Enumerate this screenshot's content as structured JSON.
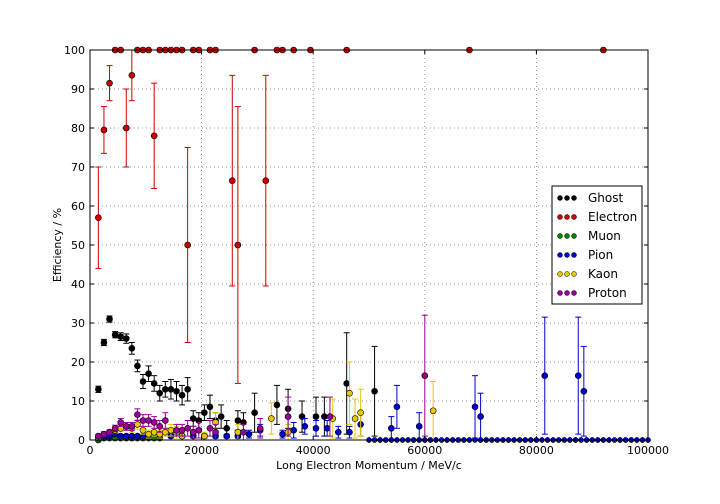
{
  "chart_data": {
    "type": "scatter",
    "xlabel": "Long Electron Momentum / MeV/c",
    "ylabel": "Efficiency / %",
    "xlim": [
      0,
      100000
    ],
    "ylim": [
      0,
      100
    ],
    "x_ticks": [
      0,
      20000,
      40000,
      60000,
      80000,
      100000
    ],
    "y_ticks": [
      0,
      10,
      20,
      30,
      40,
      50,
      60,
      70,
      80,
      90,
      100
    ],
    "grid": true,
    "legend_position": "right",
    "series": [
      {
        "name": "Ghost",
        "color": "#000000",
        "points": [
          [
            1500,
            13,
            0.8
          ],
          [
            2500,
            25,
            0.8
          ],
          [
            3500,
            31,
            0.8
          ],
          [
            4500,
            27,
            0.8
          ],
          [
            5500,
            26.5,
            1
          ],
          [
            6500,
            26,
            1.2
          ],
          [
            7500,
            23.5,
            1.5
          ],
          [
            8500,
            19,
            1.5
          ],
          [
            9500,
            15,
            1.8
          ],
          [
            10500,
            17,
            2
          ],
          [
            11500,
            14.5,
            2
          ],
          [
            12500,
            12,
            2
          ],
          [
            13500,
            13,
            2
          ],
          [
            14500,
            13,
            2.5
          ],
          [
            15500,
            12.5,
            2.5
          ],
          [
            16500,
            11.5,
            2.5
          ],
          [
            17500,
            13,
            3
          ],
          [
            18500,
            5.5,
            2
          ],
          [
            19500,
            5,
            2
          ],
          [
            20500,
            7,
            2
          ],
          [
            21500,
            8.5,
            3
          ],
          [
            22500,
            5,
            2
          ],
          [
            23500,
            6,
            3
          ],
          [
            24500,
            3,
            2
          ],
          [
            26500,
            5,
            2.5
          ],
          [
            27500,
            4.5,
            2.5
          ],
          [
            29500,
            7,
            5
          ],
          [
            33500,
            9,
            5
          ],
          [
            35500,
            8,
            5
          ],
          [
            38000,
            6,
            4
          ],
          [
            40500,
            6,
            5
          ],
          [
            42000,
            6,
            5
          ],
          [
            46000,
            14.5,
            13
          ],
          [
            51000,
            12.5,
            11.5
          ]
        ]
      },
      {
        "name": "Electron",
        "color": "#cc0000",
        "points": [
          [
            1500,
            57,
            13
          ],
          [
            2500,
            79.5,
            6
          ],
          [
            3500,
            91.5,
            4.5
          ],
          [
            4500,
            100,
            0
          ],
          [
            5500,
            100,
            0
          ],
          [
            6500,
            80,
            10
          ],
          [
            7500,
            93.5,
            6.5
          ],
          [
            8500,
            100,
            0
          ],
          [
            9500,
            100,
            0
          ],
          [
            10500,
            100,
            0
          ],
          [
            11500,
            78,
            13.5
          ],
          [
            12500,
            100,
            0
          ],
          [
            13500,
            100,
            0
          ],
          [
            14500,
            100,
            0
          ],
          [
            15500,
            100,
            0
          ],
          [
            16500,
            100,
            0
          ],
          [
            17500,
            50,
            25
          ],
          [
            18500,
            100,
            0
          ],
          [
            19500,
            100,
            0
          ],
          [
            21500,
            100,
            0
          ],
          [
            22500,
            100,
            0
          ],
          [
            25500,
            66.5,
            27
          ],
          [
            26500,
            50,
            35.5
          ],
          [
            29500,
            100,
            0
          ],
          [
            31500,
            66.5,
            27
          ],
          [
            33500,
            100,
            0
          ],
          [
            34500,
            100,
            0
          ],
          [
            36500,
            100,
            0
          ],
          [
            39500,
            100,
            0
          ],
          [
            46000,
            100,
            0
          ],
          [
            68000,
            100,
            0
          ],
          [
            92000,
            100,
            0
          ]
        ]
      },
      {
        "name": "Muon",
        "color": "#008000",
        "points": [
          [
            1500,
            0,
            0
          ],
          [
            2500,
            0.5,
            0.3
          ],
          [
            3500,
            0.5,
            0.3
          ],
          [
            4500,
            0.5,
            0.3
          ],
          [
            5500,
            0.5,
            0.3
          ],
          [
            6500,
            0.5,
            0.3
          ],
          [
            7500,
            0.5,
            0.3
          ],
          [
            8500,
            0.5,
            0.3
          ],
          [
            9500,
            0.5,
            0.3
          ],
          [
            10500,
            0.5,
            0.3
          ],
          [
            11500,
            0.5,
            0.3
          ],
          [
            12500,
            0.5,
            0.3
          ]
        ]
      },
      {
        "name": "Pion",
        "color": "#0000cc",
        "points": [
          [
            1500,
            0.5,
            0.3
          ],
          [
            2500,
            1,
            0.4
          ],
          [
            3500,
            1,
            0.4
          ],
          [
            4500,
            1.5,
            0.5
          ],
          [
            5500,
            1,
            0.4
          ],
          [
            6500,
            1,
            0.4
          ],
          [
            7500,
            1,
            0.4
          ],
          [
            8500,
            1,
            0.4
          ],
          [
            9500,
            1,
            0.4
          ],
          [
            10500,
            1,
            0.5
          ],
          [
            12500,
            1,
            0.5
          ],
          [
            14500,
            1,
            0.5
          ],
          [
            16500,
            1,
            0.5
          ],
          [
            18500,
            1,
            0.5
          ],
          [
            20500,
            1,
            0.5
          ],
          [
            22500,
            1,
            0.5
          ],
          [
            24500,
            1,
            0.5
          ],
          [
            26500,
            1,
            0.5
          ],
          [
            28500,
            1.5,
            1
          ],
          [
            30500,
            2.5,
            1.5
          ],
          [
            34500,
            1.5,
            1
          ],
          [
            36500,
            2.5,
            2
          ],
          [
            38500,
            3.5,
            2
          ],
          [
            40500,
            3,
            2
          ],
          [
            42500,
            3,
            2
          ],
          [
            44500,
            2,
            1.5
          ],
          [
            46500,
            2,
            1.5
          ],
          [
            48500,
            4,
            3
          ],
          [
            54000,
            3,
            3
          ],
          [
            55000,
            8.5,
            5.5
          ],
          [
            59000,
            3.5,
            3.5
          ],
          [
            69000,
            8.5,
            8
          ],
          [
            70000,
            6,
            6
          ],
          [
            81500,
            16.5,
            15
          ],
          [
            87500,
            16.5,
            15
          ],
          [
            88500,
            12.5,
            11.5
          ]
        ]
      },
      {
        "name": "Kaon",
        "color": "#e6c800",
        "points": [
          [
            1500,
            0.5,
            0.3
          ],
          [
            2500,
            1.5,
            0.5
          ],
          [
            3500,
            2,
            0.5
          ],
          [
            4500,
            2.5,
            0.7
          ],
          [
            5500,
            3,
            0.8
          ],
          [
            6500,
            3.5,
            1
          ],
          [
            7500,
            3,
            1
          ],
          [
            8500,
            4,
            1.2
          ],
          [
            9500,
            2.5,
            1
          ],
          [
            10500,
            1.5,
            1
          ],
          [
            11500,
            2,
            1
          ],
          [
            12500,
            1.5,
            1
          ],
          [
            13500,
            2,
            1
          ],
          [
            14500,
            2.5,
            1.5
          ],
          [
            15500,
            2,
            1.5
          ],
          [
            16500,
            1,
            1
          ],
          [
            18500,
            2,
            1.5
          ],
          [
            20500,
            1,
            1
          ],
          [
            22500,
            4.5,
            2.5
          ],
          [
            26500,
            2,
            2
          ],
          [
            32500,
            5.5,
            4
          ],
          [
            35500,
            2,
            2
          ],
          [
            43500,
            5.5,
            5
          ],
          [
            46500,
            12,
            8
          ],
          [
            47500,
            5.5,
            5
          ],
          [
            48500,
            7,
            6
          ],
          [
            61500,
            7.5,
            7.5
          ]
        ]
      },
      {
        "name": "Proton",
        "color": "#990099",
        "points": [
          [
            1500,
            1,
            0.5
          ],
          [
            2500,
            1.5,
            0.6
          ],
          [
            3500,
            2,
            0.6
          ],
          [
            4500,
            3,
            0.8
          ],
          [
            5500,
            4.5,
            1
          ],
          [
            6500,
            3.5,
            1
          ],
          [
            7500,
            3.5,
            1
          ],
          [
            8500,
            6.5,
            1.5
          ],
          [
            9500,
            5,
            1.5
          ],
          [
            10500,
            5,
            1.5
          ],
          [
            11500,
            4.5,
            1.5
          ],
          [
            12500,
            3.5,
            1.5
          ],
          [
            13500,
            5,
            2
          ],
          [
            15500,
            2.5,
            1.5
          ],
          [
            16500,
            2.5,
            1.5
          ],
          [
            17500,
            3,
            2
          ],
          [
            18500,
            2,
            1.5
          ],
          [
            19500,
            2.5,
            2
          ],
          [
            21500,
            3,
            2
          ],
          [
            22500,
            2,
            2
          ],
          [
            27500,
            2,
            2
          ],
          [
            30500,
            3,
            2.5
          ],
          [
            35500,
            6,
            5
          ],
          [
            43000,
            6,
            5
          ],
          [
            60000,
            16.5,
            15.5
          ]
        ]
      }
    ],
    "baseline": {
      "description_note": "",
      "x_start": 50000,
      "x_end": 100000,
      "step": 1000,
      "colors": [
        "#990099",
        "#e6c800",
        "#0000cc"
      ]
    }
  }
}
